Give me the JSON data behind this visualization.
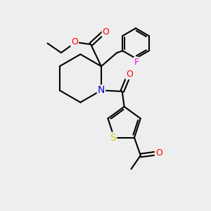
{
  "bg_color": "#eeeeee",
  "line_color": "#000000",
  "atom_colors": {
    "O": "#ff0000",
    "N": "#0000cc",
    "F": "#ff00ff",
    "S": "#cccc00",
    "C": "#000000"
  },
  "font_size": 9,
  "figsize": [
    3.0,
    3.0
  ],
  "dpi": 100
}
